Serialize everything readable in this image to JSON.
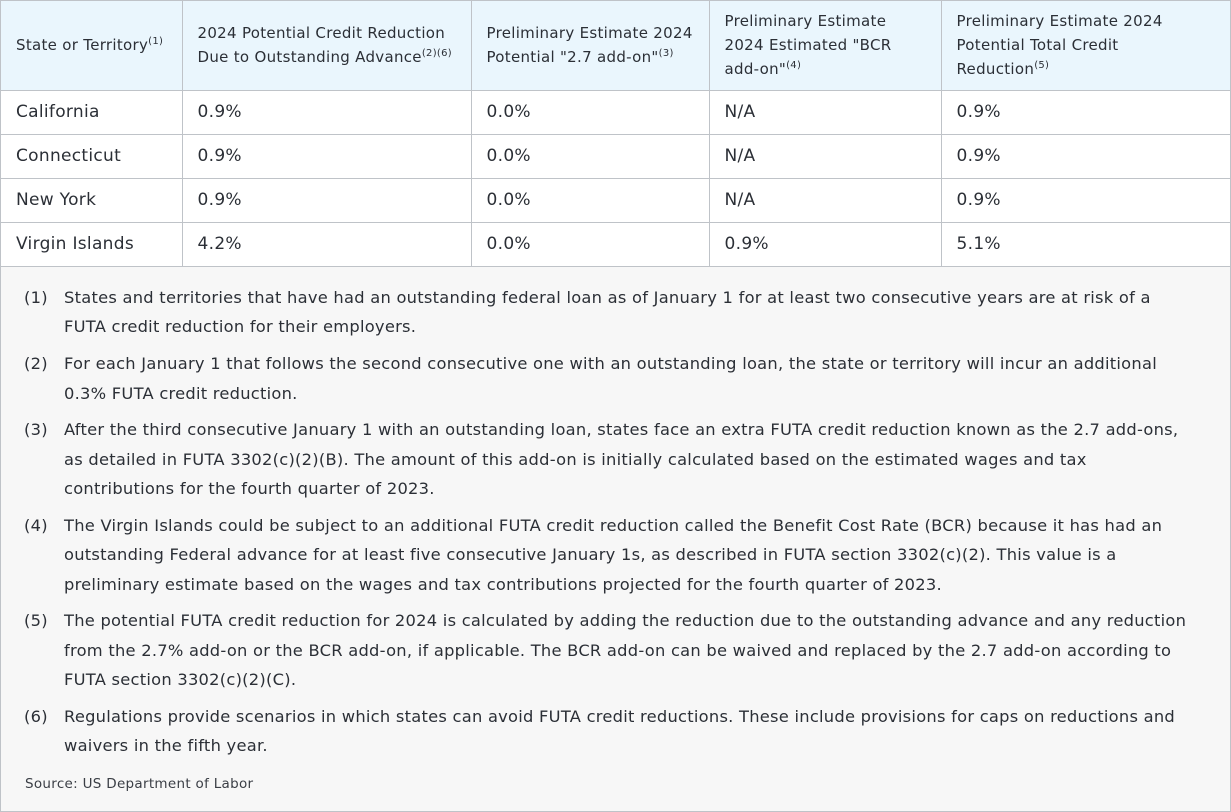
{
  "table": {
    "headers": [
      {
        "text": "State or Territory",
        "sup": "(1)"
      },
      {
        "text": "2024 Potential Credit Reduction Due to Outstanding Advance",
        "sup": "(2)(6)"
      },
      {
        "text": "Preliminary Estimate 2024 Potential \"2.7 add-on\"",
        "sup": "(3)"
      },
      {
        "text": "Preliminary Estimate 2024 Estimated \"BCR add-on\"",
        "sup": "(4)"
      },
      {
        "text": "Preliminary Estimate 2024 Potential Total Credit Reduction",
        "sup": "(5)"
      }
    ],
    "rows": [
      [
        "California",
        "0.9%",
        "0.0%",
        "N/A",
        "0.9%"
      ],
      [
        "Connecticut",
        "0.9%",
        "0.0%",
        "N/A",
        "0.9%"
      ],
      [
        "New York",
        "0.9%",
        "0.0%",
        "N/A",
        "0.9%"
      ],
      [
        "Virgin Islands",
        "4.2%",
        "0.0%",
        "0.9%",
        "5.1%"
      ]
    ]
  },
  "notes": [
    {
      "num": "(1)",
      "text": "States and territories that have had an outstanding federal loan as of January 1 for at least two consecutive years are at risk of a FUTA credit reduction for their employers."
    },
    {
      "num": "(2)",
      "text": "For each January 1 that follows the second consecutive one with an outstanding loan, the state or territory will incur an additional 0.3% FUTA credit reduction."
    },
    {
      "num": "(3)",
      "text": "After the third consecutive January 1 with an outstanding loan, states face an extra FUTA credit reduction known as the 2.7 add-ons, as detailed in FUTA 3302(c)(2)(B). The amount of this add-on is initially calculated based on the estimated wages and tax contributions for the fourth quarter of 2023."
    },
    {
      "num": "(4)",
      "text": "The Virgin Islands could be subject to an additional FUTA credit reduction called the Benefit Cost Rate (BCR) because it has had an outstanding Federal advance for at least five consecutive January 1s, as described in FUTA section 3302(c)(2). This value is a preliminary estimate based on the wages and tax contributions projected for the fourth quarter of 2023."
    },
    {
      "num": "(5)",
      "text": "The potential FUTA credit reduction for 2024 is calculated by adding the reduction due to the outstanding advance and any reduction from the 2.7% add-on or the BCR add-on, if applicable. The BCR add-on can be waived and replaced by the 2.7 add-on according to FUTA section 3302(c)(2)(C)."
    },
    {
      "num": "(6)",
      "text": "Regulations provide scenarios in which states can avoid FUTA credit reductions. These include provisions for caps on reductions and waivers in the fifth year."
    }
  ],
  "source": "Source: US Department of Labor"
}
